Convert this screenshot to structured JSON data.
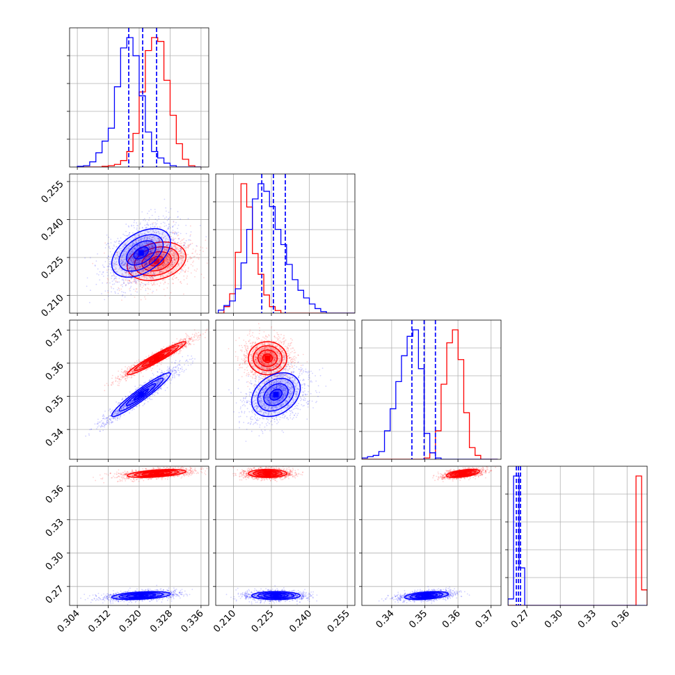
{
  "chart_data": {
    "type": "corner",
    "title": "",
    "series": [
      {
        "name": "",
        "color": "#ff0000"
      },
      {
        "name": "",
        "color": "#0000ff"
      }
    ],
    "parameters": [
      {
        "range": [
          0.302,
          0.338
        ],
        "ticks": [
          "0.304",
          "0.312",
          "0.320",
          "0.328",
          "0.336"
        ]
      },
      {
        "range": [
          0.203,
          0.258
        ],
        "ticks": [
          "0.210",
          "0.225",
          "0.240",
          "0.255"
        ]
      },
      {
        "range": [
          0.331,
          0.373
        ],
        "ticks": [
          "0.34",
          "0.35",
          "0.36",
          "0.37"
        ]
      },
      {
        "range": [
          0.253,
          0.378
        ],
        "ticks": [
          "0.27",
          "0.30",
          "0.33",
          "0.36"
        ]
      }
    ],
    "quantiles_blue": [
      [
        0.3173,
        0.3209,
        0.3245
      ],
      [
        0.2212,
        0.2258,
        0.2305
      ],
      [
        0.3461,
        0.3498,
        0.3532
      ],
      [
        0.2605,
        0.2624,
        0.2642
      ]
    ],
    "marginals": [
      {
        "bins": [
          0.304,
          0.336,
          20
        ],
        "red": [
          0,
          0,
          0,
          0,
          0.5,
          1,
          2,
          5,
          12,
          26,
          58,
          90,
          100,
          97,
          67,
          40,
          18,
          6,
          1,
          0
        ],
        "blue": [
          0.5,
          1,
          4,
          11,
          20,
          30,
          62,
          92,
          100,
          86,
          55,
          27,
          12,
          7,
          3,
          1,
          0,
          0,
          0,
          0
        ]
      },
      {
        "bins": [
          0.204,
          0.258,
          24
        ],
        "red": [
          0,
          5,
          15,
          47,
          100,
          82,
          46,
          30,
          14,
          5,
          2,
          0,
          0,
          0,
          0,
          0,
          0,
          0,
          0,
          0,
          0,
          0,
          0,
          0
        ],
        "blue": [
          2,
          5,
          8,
          16,
          33,
          55,
          75,
          85,
          80,
          70,
          55,
          45,
          32,
          22,
          15,
          10,
          6,
          3,
          1,
          0,
          0,
          0,
          0,
          0
        ]
      },
      {
        "bins": [
          0.331,
          0.372,
          24
        ],
        "red": [
          0,
          0,
          0,
          0,
          0,
          0,
          0,
          0,
          0,
          0,
          0,
          1,
          5,
          22,
          58,
          90,
          100,
          77,
          36,
          9,
          3,
          0,
          0,
          0
        ],
        "blue": [
          1,
          2,
          3,
          6,
          22,
          39,
          60,
          80,
          95,
          100,
          70,
          20,
          5,
          1,
          0,
          0,
          0,
          0,
          0,
          0,
          0,
          0,
          0,
          0
        ]
      },
      {
        "bins": [
          0.253,
          0.378,
          25
        ],
        "red": [
          0,
          0,
          0,
          0,
          0,
          0,
          0,
          0,
          0,
          0,
          0,
          0,
          0,
          0,
          0,
          0,
          0,
          0,
          0,
          0,
          0,
          0,
          0,
          100,
          12
        ],
        "blue": [
          5,
          100,
          29,
          0,
          0,
          0,
          0,
          0,
          0,
          0,
          0,
          0,
          0,
          0,
          0,
          0,
          0,
          0,
          0,
          0,
          0,
          0,
          0,
          0,
          0
        ]
      }
    ],
    "centroids": {
      "red": [
        0.3245,
        0.2235,
        0.3615,
        0.3715
      ],
      "blue": [
        0.3205,
        0.2268,
        0.3505,
        0.2618
      ]
    },
    "spreads": {
      "red": [
        0.0038,
        0.0038,
        0.0025,
        0.0018
      ],
      "blue": [
        0.0038,
        0.0048,
        0.0033,
        0.0018
      ]
    },
    "correlations": {
      "red": {
        "0-1": 0.25,
        "0-2": 0.96,
        "1-2": 0.0,
        "0-3": 0.5,
        "1-3": 0.0,
        "2-3": 0.5
      },
      "blue": {
        "0-1": 0.45,
        "0-2": 0.95,
        "1-2": 0.3,
        "0-3": 0.4,
        "1-3": 0.0,
        "2-3": 0.4
      }
    },
    "grid": true
  }
}
